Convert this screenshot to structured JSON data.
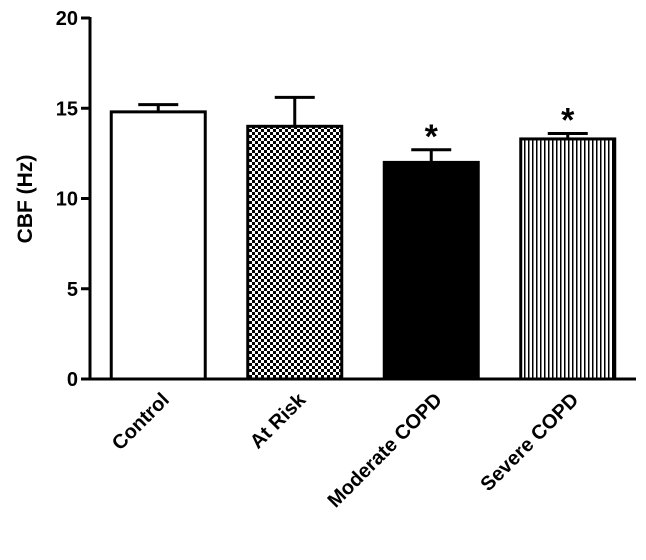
{
  "chart_data": {
    "type": "bar",
    "y_label": "CBF (Hz)",
    "categories": [
      "Control",
      "At Risk",
      "Moderate COPD",
      "Severe COPD"
    ],
    "values": [
      14.8,
      14.0,
      12.0,
      13.3
    ],
    "errors": [
      0.4,
      1.6,
      0.7,
      0.3
    ],
    "patterns": [
      "solid-white",
      "checker",
      "solid-black",
      "vertical-stripes"
    ],
    "annotations": [
      {
        "category_index": 2,
        "text": "*"
      },
      {
        "category_index": 3,
        "text": "*"
      }
    ],
    "ylim": [
      0,
      20
    ],
    "yticks": [
      0,
      5,
      10,
      15,
      20
    ]
  }
}
